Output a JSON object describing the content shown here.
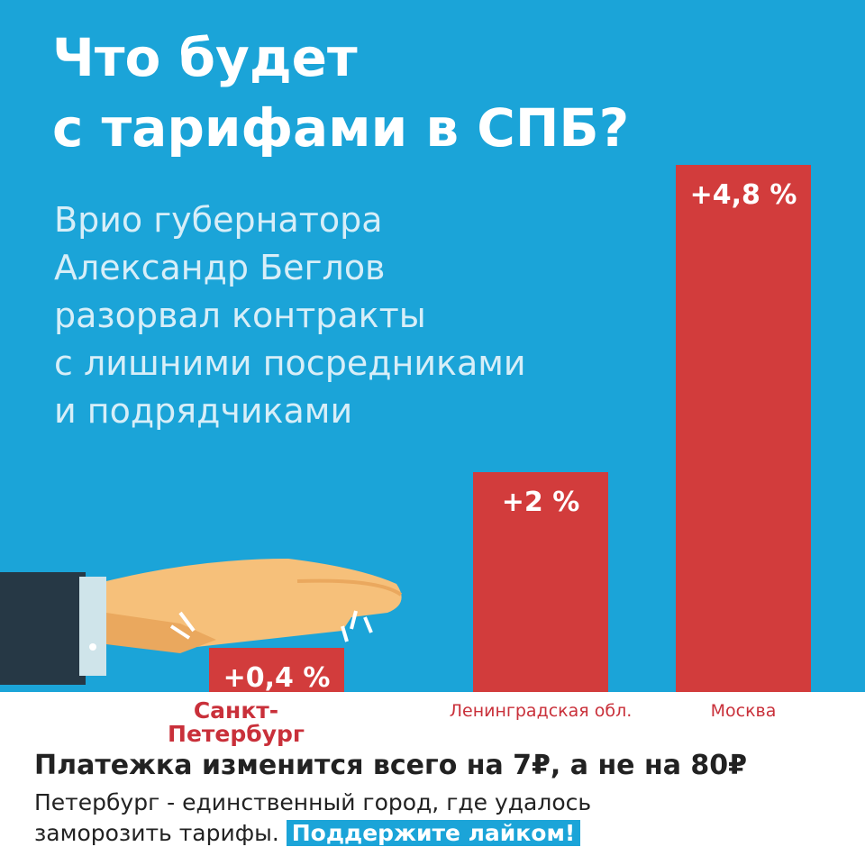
{
  "chart_data": {
    "type": "bar",
    "title": [
      "Что будет",
      "с тарифами в СПБ?"
    ],
    "subtitle": [
      "Врио губернатора",
      "Александр Беглов",
      "разорвал контракты",
      "с лишними посредниками",
      "и подрядчиками"
    ],
    "categories": [
      "Санкт-Петербург",
      "Ленинградская обл.",
      "Москва"
    ],
    "values": [
      0.4,
      2,
      4.8
    ],
    "value_labels": [
      "+0,4 %",
      "+2 %",
      "+4,8 %"
    ],
    "color": "#d23c3c"
  },
  "footer": {
    "headline": "Платежка изменится всего на 7₽, а не на 80₽",
    "text": [
      "Петербург - единственный город, где удалось",
      "заморозить тарифы."
    ],
    "button": "Поддержите лайком!"
  }
}
